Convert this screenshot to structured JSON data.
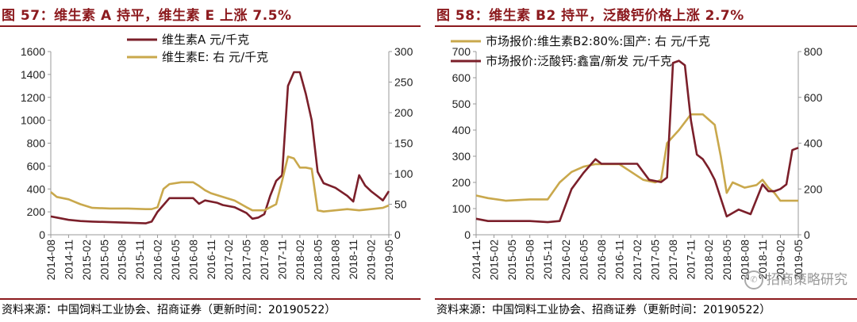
{
  "left": {
    "title": "图 57：维生素 A 持平，维生素 E 上涨 7.5%",
    "source": "资料来源：中国饲料工业协会、招商证券（更新时间：20190522）"
  },
  "right": {
    "title": "图 58：维生素 B2 持平，泛酸钙价格上涨 2.7%",
    "source": "资料来源：中国饲料工业协会、招商证券（更新时间：20190522）"
  },
  "watermark": "招商策略研究",
  "colors": {
    "dark_red": "#7b1f2a",
    "gold": "#c9a84c",
    "title": "#8c1a1e"
  },
  "chart_data": [
    {
      "type": "line",
      "title": "图 57：维生素 A 持平，维生素 E 上涨 7.5%",
      "x_tick_labels": [
        "2014-08",
        "2014-11",
        "2015-02",
        "2015-05",
        "2015-08",
        "2015-11",
        "2016-02",
        "2016-05",
        "2016-08",
        "2016-11",
        "2017-02",
        "2017-05",
        "2017-08",
        "2017-11",
        "2018-02",
        "2018-05",
        "2018-08",
        "2018-11",
        "2019-02",
        "2019-05"
      ],
      "y_left": {
        "ticks": [
          0,
          200,
          400,
          600,
          800,
          1000,
          1200,
          1400,
          1600
        ],
        "range": [
          0,
          1600
        ]
      },
      "y_right": {
        "ticks": [
          0,
          50,
          100,
          150,
          200,
          250,
          300
        ],
        "range": [
          0,
          300
        ]
      },
      "legend_position": "top-center",
      "series": [
        {
          "name": "维生素A 元/千克",
          "axis": "left",
          "color": "#7b1f2a",
          "points": [
            [
              "2014-08",
              160
            ],
            [
              "2014-09",
              150
            ],
            [
              "2014-11",
              130
            ],
            [
              "2015-01",
              120
            ],
            [
              "2015-03",
              115
            ],
            [
              "2015-06",
              110
            ],
            [
              "2015-09",
              105
            ],
            [
              "2015-12",
              100
            ],
            [
              "2016-01",
              115
            ],
            [
              "2016-02",
              200
            ],
            [
              "2016-03",
              260
            ],
            [
              "2016-04",
              320
            ],
            [
              "2016-06",
              320
            ],
            [
              "2016-08",
              320
            ],
            [
              "2016-09",
              270
            ],
            [
              "2016-10",
              300
            ],
            [
              "2016-12",
              280
            ],
            [
              "2017-01",
              260
            ],
            [
              "2017-03",
              240
            ],
            [
              "2017-05",
              190
            ],
            [
              "2017-06",
              140
            ],
            [
              "2017-07",
              150
            ],
            [
              "2017-08",
              180
            ],
            [
              "2017-09",
              340
            ],
            [
              "2017-10",
              470
            ],
            [
              "2017-11",
              520
            ],
            [
              "2017-12",
              1300
            ],
            [
              "2018-01",
              1420
            ],
            [
              "2018-02",
              1420
            ],
            [
              "2018-03",
              1230
            ],
            [
              "2018-04",
              1000
            ],
            [
              "2018-05",
              550
            ],
            [
              "2018-06",
              450
            ],
            [
              "2018-08",
              410
            ],
            [
              "2018-10",
              340
            ],
            [
              "2018-11",
              290
            ],
            [
              "2018-12",
              520
            ],
            [
              "2019-01",
              430
            ],
            [
              "2019-02",
              380
            ],
            [
              "2019-03",
              340
            ],
            [
              "2019-04",
              300
            ],
            [
              "2019-05",
              380
            ]
          ]
        },
        {
          "name": "维生素E: 右 元/千克",
          "axis": "right",
          "color": "#c9a84c",
          "points": [
            [
              "2014-08",
              70
            ],
            [
              "2014-09",
              62
            ],
            [
              "2014-11",
              58
            ],
            [
              "2015-01",
              50
            ],
            [
              "2015-03",
              44
            ],
            [
              "2015-06",
              43
            ],
            [
              "2015-09",
              43
            ],
            [
              "2015-12",
              42
            ],
            [
              "2016-01",
              42
            ],
            [
              "2016-02",
              45
            ],
            [
              "2016-03",
              75
            ],
            [
              "2016-04",
              83
            ],
            [
              "2016-06",
              86
            ],
            [
              "2016-08",
              86
            ],
            [
              "2016-09",
              80
            ],
            [
              "2016-10",
              73
            ],
            [
              "2016-11",
              68
            ],
            [
              "2017-01",
              62
            ],
            [
              "2017-03",
              56
            ],
            [
              "2017-05",
              45
            ],
            [
              "2017-06",
              40
            ],
            [
              "2017-08",
              40
            ],
            [
              "2017-10",
              50
            ],
            [
              "2017-11",
              88
            ],
            [
              "2017-12",
              128
            ],
            [
              "2018-01",
              125
            ],
            [
              "2018-02",
              110
            ],
            [
              "2018-03",
              110
            ],
            [
              "2018-04",
              108
            ],
            [
              "2018-05",
              40
            ],
            [
              "2018-06",
              38
            ],
            [
              "2018-08",
              40
            ],
            [
              "2018-10",
              42
            ],
            [
              "2018-12",
              40
            ],
            [
              "2019-02",
              42
            ],
            [
              "2019-04",
              44
            ],
            [
              "2019-05",
              48
            ]
          ]
        }
      ]
    },
    {
      "type": "line",
      "title": "图 58：维生素 B2 持平，泛酸钙价格上涨 2.7%",
      "x_tick_labels": [
        "2014-11",
        "2015-02",
        "2015-05",
        "2015-08",
        "2015-11",
        "2016-02",
        "2016-05",
        "2016-08",
        "2016-11",
        "2017-02",
        "2017-05",
        "2017-08",
        "2017-11",
        "2018-02",
        "2018-05",
        "2018-08",
        "2018-11",
        "2019-02",
        "2019-05"
      ],
      "y_left": {
        "ticks": [
          0,
          100,
          200,
          300,
          400,
          500,
          600,
          700
        ],
        "range": [
          0,
          700
        ]
      },
      "y_right": {
        "ticks": [
          0,
          200,
          400,
          600,
          800
        ],
        "range": [
          0,
          800
        ]
      },
      "legend_position": "top-left",
      "series": [
        {
          "name": "市场报价:维生素B2:80%:国产: 右 元/千克",
          "axis": "left",
          "color": "#c9a84c",
          "points": [
            [
              "2014-11",
              150
            ],
            [
              "2015-01",
              140
            ],
            [
              "2015-04",
              130
            ],
            [
              "2015-08",
              135
            ],
            [
              "2015-11",
              135
            ],
            [
              "2016-01",
              200
            ],
            [
              "2016-03",
              240
            ],
            [
              "2016-05",
              260
            ],
            [
              "2016-07",
              270
            ],
            [
              "2016-09",
              270
            ],
            [
              "2016-11",
              270
            ],
            [
              "2017-01",
              240
            ],
            [
              "2017-03",
              210
            ],
            [
              "2017-05",
              200
            ],
            [
              "2017-06",
              210
            ],
            [
              "2017-07",
              350
            ],
            [
              "2017-09",
              400
            ],
            [
              "2017-11",
              460
            ],
            [
              "2018-01",
              460
            ],
            [
              "2018-03",
              420
            ],
            [
              "2018-04",
              300
            ],
            [
              "2018-05",
              160
            ],
            [
              "2018-06",
              200
            ],
            [
              "2018-08",
              180
            ],
            [
              "2018-10",
              190
            ],
            [
              "2018-11",
              210
            ],
            [
              "2018-12",
              180
            ],
            [
              "2019-01",
              160
            ],
            [
              "2019-02",
              130
            ],
            [
              "2019-05",
              130
            ]
          ]
        },
        {
          "name": "市场报价:泛酸钙:鑫富/新发 元/千克",
          "axis": "right",
          "color": "#7b1f2a",
          "points": [
            [
              "2014-11",
              70
            ],
            [
              "2015-01",
              60
            ],
            [
              "2015-04",
              60
            ],
            [
              "2015-08",
              60
            ],
            [
              "2015-11",
              55
            ],
            [
              "2016-01",
              60
            ],
            [
              "2016-03",
              200
            ],
            [
              "2016-05",
              270
            ],
            [
              "2016-07",
              330
            ],
            [
              "2016-08",
              310
            ],
            [
              "2016-10",
              310
            ],
            [
              "2016-12",
              310
            ],
            [
              "2017-02",
              310
            ],
            [
              "2017-04",
              240
            ],
            [
              "2017-06",
              230
            ],
            [
              "2017-07",
              250
            ],
            [
              "2017-08",
              750
            ],
            [
              "2017-09",
              760
            ],
            [
              "2017-10",
              740
            ],
            [
              "2017-11",
              500
            ],
            [
              "2017-12",
              350
            ],
            [
              "2018-01",
              330
            ],
            [
              "2018-02",
              290
            ],
            [
              "2018-03",
              240
            ],
            [
              "2018-05",
              80
            ],
            [
              "2018-07",
              110
            ],
            [
              "2018-08",
              100
            ],
            [
              "2018-09",
              90
            ],
            [
              "2018-11",
              220
            ],
            [
              "2018-12",
              190
            ],
            [
              "2019-01",
              190
            ],
            [
              "2019-02",
              200
            ],
            [
              "2019-03",
              220
            ],
            [
              "2019-04",
              370
            ],
            [
              "2019-05",
              380
            ]
          ]
        }
      ]
    }
  ]
}
